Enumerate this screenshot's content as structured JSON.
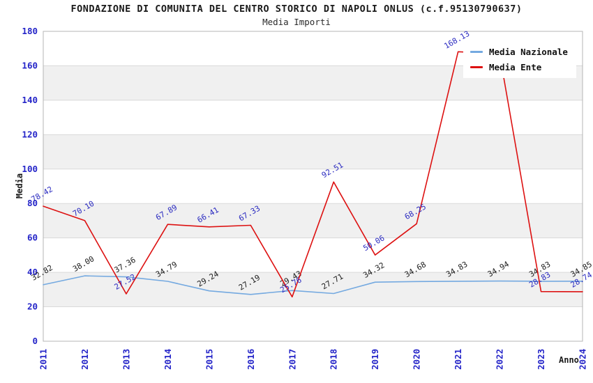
{
  "header": {
    "title": "FONDAZIONE DI COMUNITA DEL CENTRO STORICO DI NAPOLI ONLUS (c.f.95130790637)",
    "subtitle": "Media Importi"
  },
  "colors": {
    "axis_tick_blue": "#2424c8",
    "grid_line": "#d9d9d9",
    "band_gray": "#f0f0f0",
    "frame": "#b5b5b5",
    "national_line": "#74a9e0",
    "entity_line": "#dd1111",
    "national_label": "#1c1c1c",
    "entity_label": "#2a2ac0"
  },
  "chart_data": {
    "type": "line",
    "title": "FONDAZIONE DI COMUNITA DEL CENTRO STORICO DI NAPOLI ONLUS (c.f.95130790637)",
    "subtitle": "Media Importi",
    "xlabel": "Anno",
    "ylabel": "Media",
    "ylim": [
      0,
      180
    ],
    "ytick_step": 20,
    "grid": true,
    "legend_position": "top-right",
    "x": [
      2011,
      2012,
      2013,
      2014,
      2015,
      2016,
      2017,
      2018,
      2019,
      2020,
      2021,
      2022,
      2023,
      2024
    ],
    "series": [
      {
        "name": "Media Nazionale",
        "color": "#74a9e0",
        "label_color": "#1c1c1c",
        "values": [
          32.82,
          38.0,
          37.36,
          34.79,
          29.24,
          27.19,
          29.43,
          27.71,
          34.32,
          34.68,
          34.83,
          34.94,
          34.83,
          34.85
        ],
        "labels": [
          "32.82",
          "38.00",
          "37.36",
          "34.79",
          "29.24",
          "27.19",
          "29.43",
          "27.71",
          "34.32",
          "34.68",
          "34.83",
          "34.94",
          "34.83",
          "34.85"
        ]
      },
      {
        "name": "Media Ente",
        "color": "#dd1111",
        "label_color": "#2a2ac0",
        "values": [
          78.42,
          70.1,
          27.52,
          67.89,
          66.41,
          67.33,
          25.76,
          92.51,
          50.06,
          68.25,
          168.13,
          167,
          28.83,
          28.74
        ],
        "labels": [
          "78.42",
          "70.10",
          "27.52",
          "67.89",
          "66.41",
          "67.33",
          "25.76",
          "92.51",
          "50.06",
          "68.25",
          "168.13",
          null,
          "28.83",
          "28.74"
        ]
      }
    ]
  }
}
